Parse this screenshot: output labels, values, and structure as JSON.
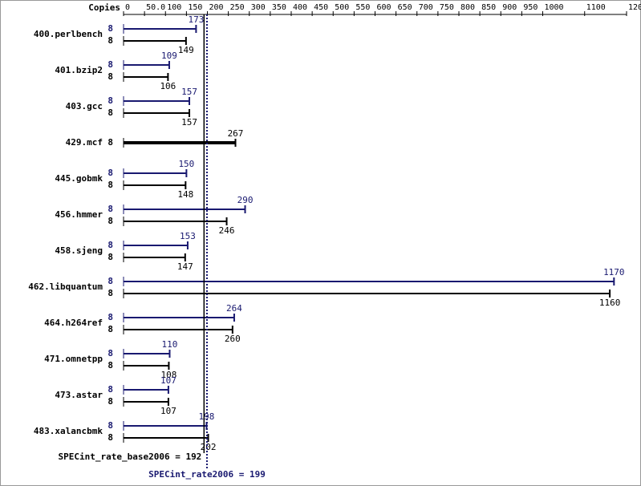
{
  "chart_data": {
    "type": "bar",
    "copies_label": "Copies",
    "categories": [
      "400.perlbench",
      "401.bzip2",
      "403.gcc",
      "429.mcf",
      "445.gobmk",
      "456.hmmer",
      "458.sjeng",
      "462.libquantum",
      "464.h264ref",
      "471.omnetpp",
      "473.astar",
      "483.xalancbmk"
    ],
    "series": [
      {
        "color": "#191970",
        "copies": [
          8,
          8,
          8,
          null,
          8,
          8,
          8,
          8,
          8,
          8,
          8,
          8
        ],
        "values": [
          173,
          109,
          157,
          null,
          150,
          290,
          153,
          1170,
          264,
          110,
          107,
          198
        ]
      },
      {
        "color": "#000000",
        "copies": [
          8,
          8,
          8,
          8,
          8,
          8,
          8,
          8,
          8,
          8,
          8,
          8
        ],
        "values": [
          149,
          106,
          157,
          267,
          148,
          246,
          147,
          1160,
          260,
          108,
          107,
          202
        ]
      }
    ],
    "summary": [
      {
        "label": "SPECint_rate_base2006 = 192",
        "value": 192,
        "color": "#000000"
      },
      {
        "label": "SPECint_rate2006 = 199",
        "value": 199,
        "color": "#191970"
      }
    ],
    "xlim": [
      0,
      1200
    ],
    "xticks": [
      0,
      {
        "value": 50,
        "label": "50.0"
      },
      100,
      150,
      200,
      250,
      300,
      350,
      400,
      450,
      500,
      550,
      600,
      650,
      700,
      750,
      800,
      850,
      900,
      950,
      1000,
      1100,
      1200
    ]
  }
}
